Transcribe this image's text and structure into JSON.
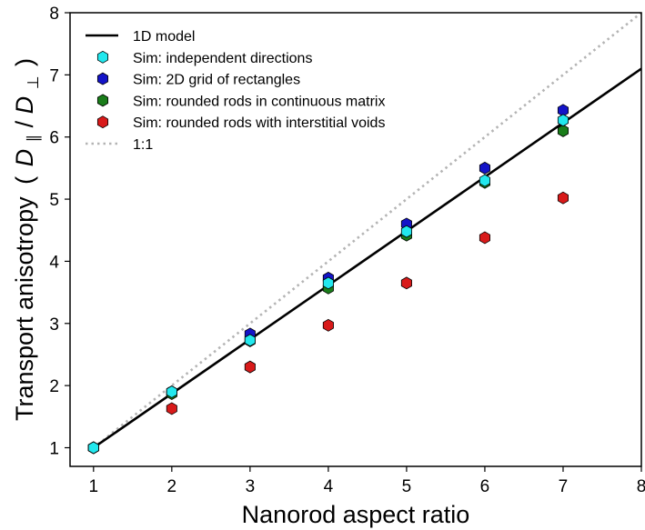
{
  "chart_data": {
    "type": "scatter",
    "xlabel": "Nanorod aspect ratio",
    "ylabel": "Transport anisotropy (D∥/D⊥)",
    "ylabel_parts": {
      "prefix": "Transport anisotropy",
      "open": "(",
      "d1": "D",
      "sub1": "∥",
      "slash": "/",
      "d2": "D",
      "sub2": "⊥",
      "close": ")"
    },
    "xlim": [
      0.7,
      8
    ],
    "ylim": [
      0.7,
      8
    ],
    "xticks": [
      1,
      2,
      3,
      4,
      5,
      6,
      7,
      8
    ],
    "yticks": [
      1,
      2,
      3,
      4,
      5,
      6,
      7,
      8
    ],
    "grid": false,
    "legend_position": "upper-left",
    "series": [
      {
        "name": "1D model",
        "kind": "line",
        "color": "#000000",
        "x": [
          1,
          8
        ],
        "y": [
          1,
          7.1
        ]
      },
      {
        "name": "Sim: independent directions",
        "kind": "marker",
        "color": "#22e8ee",
        "x": [
          1,
          2,
          3,
          4,
          5,
          6,
          7
        ],
        "y": [
          1.0,
          1.9,
          2.73,
          3.65,
          4.48,
          5.3,
          6.27
        ]
      },
      {
        "name": "Sim: 2D grid of rectangles",
        "kind": "marker",
        "color": "#1414c8",
        "x": [
          1,
          2,
          3,
          4,
          5,
          6,
          7
        ],
        "y": [
          1.0,
          1.9,
          2.83,
          3.73,
          4.6,
          5.5,
          6.43
        ]
      },
      {
        "name": "Sim: rounded rods in continuous matrix",
        "kind": "marker",
        "color": "#1a7d1a",
        "x": [
          1,
          2,
          3,
          4,
          5,
          6,
          7
        ],
        "y": [
          1.0,
          1.87,
          2.72,
          3.57,
          4.42,
          5.27,
          6.1
        ]
      },
      {
        "name": "Sim: rounded rods with interstitial voids",
        "kind": "marker",
        "color": "#d81a1a",
        "x": [
          1,
          2,
          3,
          4,
          5,
          6,
          7
        ],
        "y": [
          1.0,
          1.63,
          2.3,
          2.97,
          3.65,
          4.38,
          5.02
        ]
      },
      {
        "name": "1:1",
        "kind": "dotted-line",
        "color": "#b4b4b4",
        "x": [
          1,
          8
        ],
        "y": [
          1,
          8
        ]
      }
    ]
  }
}
